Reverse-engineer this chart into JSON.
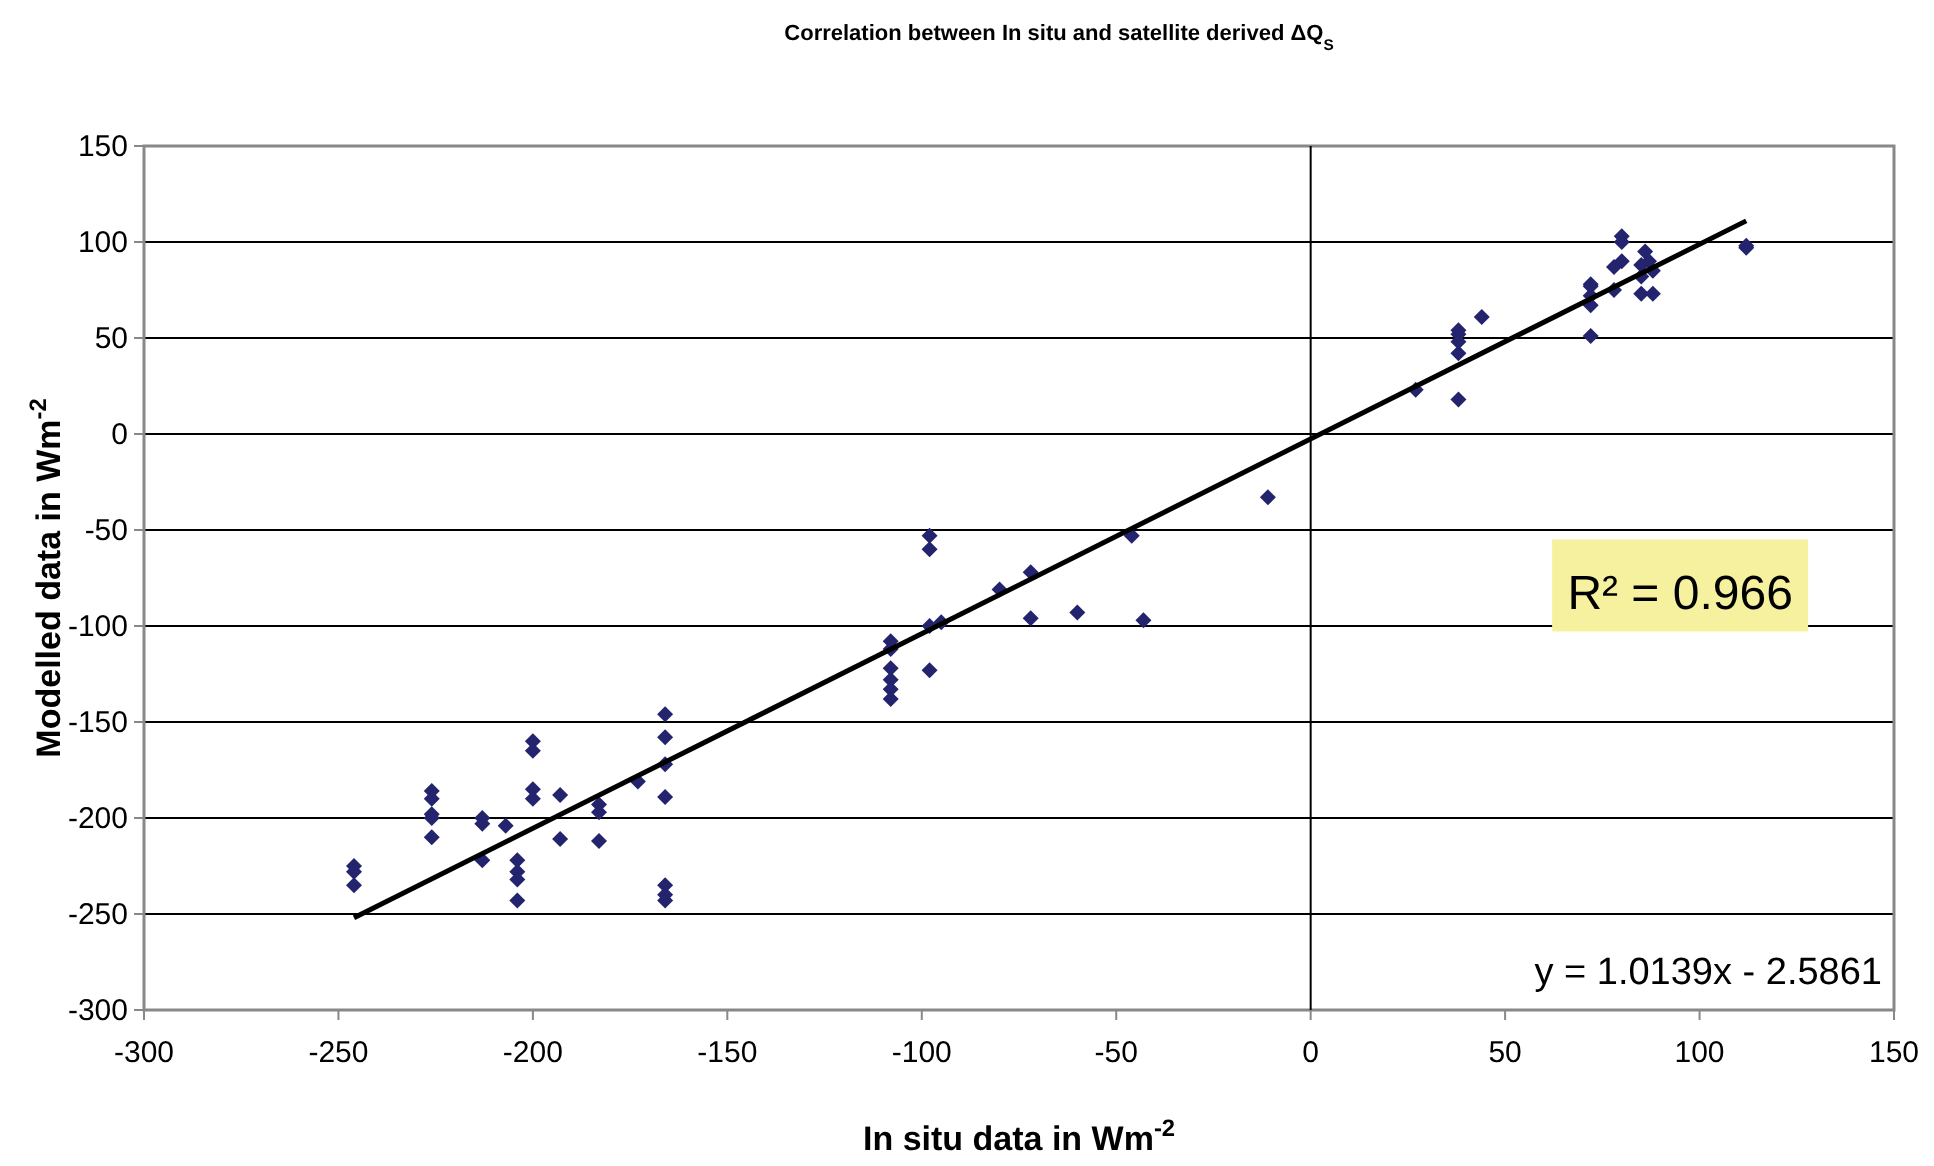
{
  "chart_data": {
    "type": "scatter",
    "title": "Correlation between In situ and satellite derived ΔQ$_{S}$",
    "xlabel": "In situ data in Wm$^{-2}$",
    "ylabel": "Modelled data in Wm$^{-2}$",
    "xlim": [
      -300,
      150
    ],
    "xticks": [
      -300,
      -250,
      -200,
      -150,
      -100,
      -50,
      0,
      50,
      100,
      150
    ],
    "ylim": [
      -300,
      150
    ],
    "yticks": [
      -300,
      -250,
      -200,
      -150,
      -100,
      -50,
      0,
      50,
      100,
      150
    ],
    "grid": "y",
    "marker": "diamond",
    "ref_lines": [
      {
        "axis": "x",
        "value": 0,
        "color": "#000000"
      }
    ],
    "annotations": [
      "R² = 0.966",
      "y = 1.0139x - 2.5861"
    ],
    "series": [
      {
        "color": "#23236e",
        "x": [
          -246,
          -246,
          -246,
          -226,
          -226,
          -226,
          -226,
          -226,
          -213,
          -213,
          -213,
          -207,
          -204,
          -204,
          -204,
          -204,
          -200,
          -200,
          -200,
          -200,
          -193,
          -193,
          -183,
          -183,
          -183,
          -173,
          -166,
          -166,
          -166,
          -166,
          -166,
          -166,
          -166,
          -108,
          -108,
          -108,
          -108,
          -108,
          -108,
          -98,
          -98,
          -98,
          -98,
          -95,
          -80,
          -72,
          -72,
          -60,
          -46,
          -43,
          -11,
          27,
          38,
          38,
          38,
          38,
          38,
          44,
          72,
          72,
          72,
          72,
          72,
          78,
          78,
          80,
          80,
          80,
          85,
          85,
          85,
          86,
          87,
          88,
          88,
          112,
          112
        ],
        "values": [
          -225,
          -228,
          -235,
          -186,
          -190,
          -198,
          -200,
          -210,
          -200,
          -203,
          -222,
          -204,
          -222,
          -228,
          -232,
          -243,
          -160,
          -165,
          -185,
          -190,
          -188,
          -211,
          -193,
          -197,
          -212,
          -181,
          -146,
          -158,
          -172,
          -189,
          -235,
          -240,
          -243,
          -108,
          -112,
          -122,
          -128,
          -133,
          -138,
          -53,
          -60,
          -100,
          -123,
          -98,
          -81,
          -72,
          -96,
          -93,
          -53,
          -97,
          -33,
          23,
          18,
          42,
          48,
          52,
          54,
          61,
          51,
          67,
          72,
          77,
          78,
          75,
          87,
          90,
          103,
          100,
          73,
          82,
          88,
          95,
          90,
          85,
          73,
          97,
          98
        ]
      },
      {
        "type": "line",
        "color": "#000000",
        "marker": "none",
        "x": [
          -246,
          112
        ],
        "values": [
          -252,
          111
        ]
      }
    ]
  }
}
